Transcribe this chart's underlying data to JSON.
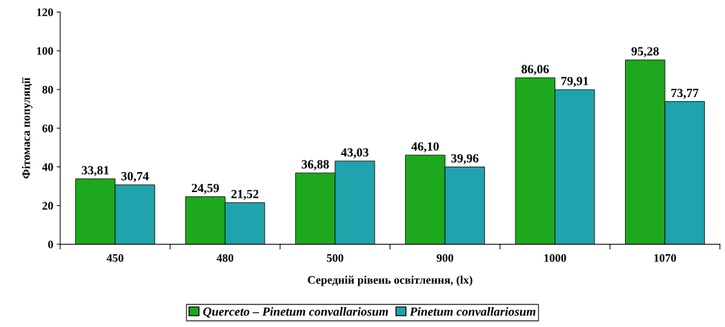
{
  "chart_data": {
    "type": "bar",
    "xlabel": "Середній рівень освітлення, (lx)",
    "ylabel": "Фітомаса популяції",
    "categories": [
      "450",
      "480",
      "500",
      "900",
      "1000",
      "1070"
    ],
    "series": [
      {
        "name": "Querceto – Pinetum convallariosum",
        "color": "#1ea81e",
        "values": [
          33.81,
          24.59,
          36.88,
          46.1,
          86.06,
          95.28
        ],
        "value_labels": [
          "33,81",
          "24,59",
          "36,88",
          "46,10",
          "86,06",
          "95,28"
        ]
      },
      {
        "name": "Pinetum convallariosum",
        "color": "#1fa3ad",
        "values": [
          30.74,
          21.52,
          43.03,
          39.96,
          79.91,
          73.77
        ],
        "value_labels": [
          "30,74",
          "21,52",
          "43,03",
          "39,96",
          "79,91",
          "73,77"
        ]
      }
    ],
    "ylim": [
      0,
      120
    ],
    "yticks": [
      0,
      20,
      40,
      60,
      80,
      100,
      120
    ],
    "grid": false,
    "legend": "bottom"
  }
}
